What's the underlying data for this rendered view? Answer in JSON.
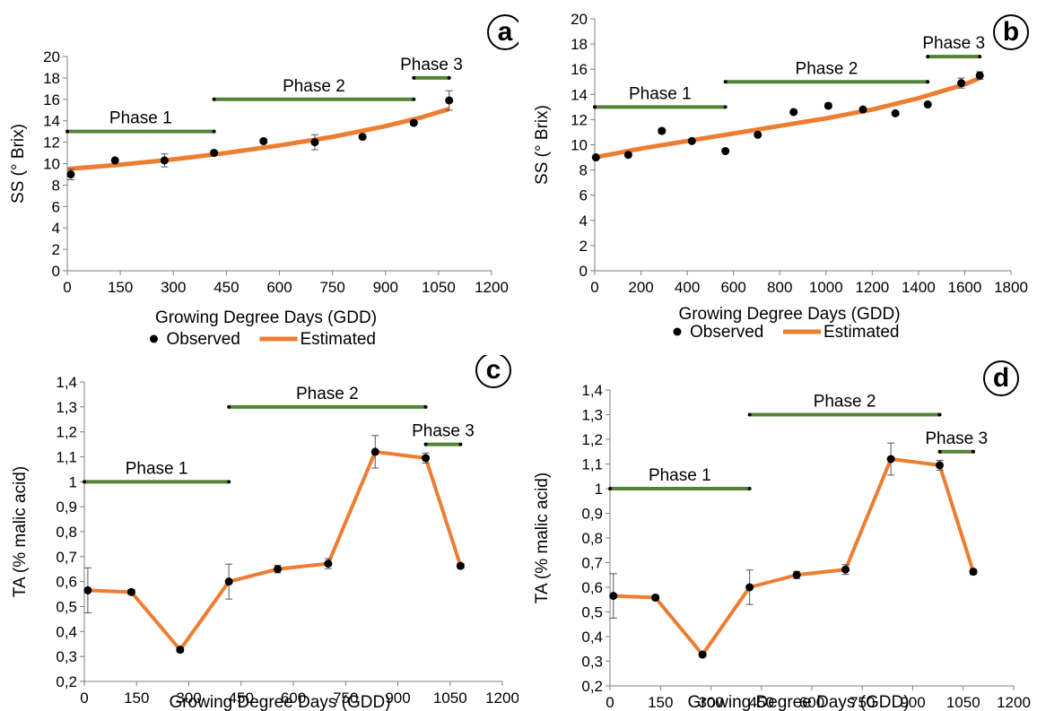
{
  "colors": {
    "estimated": "#ED7D31",
    "phase": "#548235",
    "observed": "#000000",
    "axis": "#7f7f7f"
  },
  "chart_data": [
    {
      "panel": "a",
      "type": "scatter",
      "xlabel": "Growing Degree Days (GDD)",
      "ylabel": "SS (° Brix)",
      "xlim": [
        0,
        1200
      ],
      "ylim": [
        0,
        20
      ],
      "x_ticks": [
        0,
        150,
        300,
        450,
        600,
        750,
        900,
        1050,
        1200
      ],
      "y_ticks": [
        0,
        2,
        4,
        6,
        8,
        10,
        12,
        14,
        16,
        18,
        20
      ],
      "tick_labels_x": [
        "0",
        "150",
        "300",
        "450",
        "600",
        "750",
        "900",
        "1050",
        "1200"
      ],
      "tick_labels_y": [
        "0",
        "2",
        "4",
        "6",
        "8",
        "10",
        "12",
        "14",
        "16",
        "18",
        "20"
      ],
      "observed": {
        "name": "Observed",
        "x": [
          10,
          135,
          275,
          415,
          555,
          700,
          835,
          980,
          1080
        ],
        "y": [
          9.0,
          10.3,
          10.3,
          11.0,
          12.1,
          12.0,
          12.5,
          13.8,
          15.9
        ],
        "err": [
          0.5,
          0.1,
          0.6,
          0.2,
          0.2,
          0.7,
          0.2,
          0.2,
          0.9
        ]
      },
      "estimated": {
        "name": "Estimated",
        "x": [
          0,
          150,
          300,
          450,
          600,
          750,
          900,
          1000,
          1080
        ],
        "y": [
          9.5,
          9.9,
          10.4,
          11.0,
          11.7,
          12.5,
          13.5,
          14.3,
          15.1
        ]
      },
      "phases": [
        {
          "label": "Phase 1",
          "x0": 0,
          "x1": 415,
          "y": 13.0
        },
        {
          "label": "Phase 2",
          "x0": 415,
          "x1": 980,
          "y": 16.0
        },
        {
          "label": "Phase 3",
          "x0": 980,
          "x1": 1080,
          "y": 18.0
        }
      ],
      "legend": [
        "Observed",
        "Estimated"
      ],
      "panel_label": "a"
    },
    {
      "panel": "b",
      "type": "scatter",
      "xlabel": "Growing Degree Days (GDD)",
      "ylabel": "SS (° Brix)",
      "xlim": [
        0,
        1800
      ],
      "ylim": [
        0,
        20
      ],
      "x_ticks": [
        0,
        200,
        400,
        600,
        800,
        1000,
        1200,
        1400,
        1600,
        1800
      ],
      "y_ticks": [
        0,
        2,
        4,
        6,
        8,
        10,
        12,
        14,
        16,
        18,
        20
      ],
      "tick_labels_x": [
        "0",
        "200",
        "400",
        "600",
        "800",
        "1000",
        "1200",
        "1400",
        "1600",
        "1800"
      ],
      "tick_labels_y": [
        "0",
        "2",
        "4",
        "6",
        "8",
        "10",
        "12",
        "14",
        "16",
        "18",
        "20"
      ],
      "observed": {
        "name": "Observed",
        "x": [
          5,
          145,
          290,
          420,
          565,
          705,
          860,
          1010,
          1160,
          1300,
          1440,
          1585,
          1665
        ],
        "y": [
          9.0,
          9.2,
          11.1,
          10.3,
          9.5,
          10.8,
          12.6,
          13.1,
          12.8,
          12.5,
          13.2,
          14.9,
          15.5
        ],
        "err": [
          0.1,
          0.1,
          0.2,
          0.1,
          0.1,
          0.1,
          0.1,
          0.2,
          0.1,
          0.1,
          0.1,
          0.4,
          0.3
        ]
      },
      "estimated": {
        "name": "Estimated",
        "x": [
          0,
          200,
          400,
          600,
          800,
          1000,
          1200,
          1400,
          1600,
          1665
        ],
        "y": [
          9.0,
          9.7,
          10.3,
          10.9,
          11.5,
          12.1,
          12.8,
          13.7,
          14.8,
          15.3
        ]
      },
      "phases": [
        {
          "label": "Phase 1",
          "x0": 0,
          "x1": 565,
          "y": 13.0
        },
        {
          "label": "Phase 2",
          "x0": 565,
          "x1": 1440,
          "y": 15.0
        },
        {
          "label": "Phase 3",
          "x0": 1440,
          "x1": 1665,
          "y": 17.0
        }
      ],
      "legend": [
        "Observed",
        "Estimated"
      ],
      "panel_label": "b"
    },
    {
      "panel": "c",
      "type": "line",
      "xlabel": "Growing Degree Days (GDD)",
      "ylabel": "TA (% malic acid)",
      "xlim": [
        0,
        1200
      ],
      "ylim": [
        0.2,
        1.4
      ],
      "x_ticks": [
        0,
        150,
        300,
        450,
        600,
        750,
        900,
        1050,
        1200
      ],
      "y_ticks": [
        0.2,
        0.3,
        0.4,
        0.5,
        0.6,
        0.7,
        0.8,
        0.9,
        1.0,
        1.1,
        1.2,
        1.3,
        1.4
      ],
      "tick_labels_x": [
        "0",
        "150",
        "300",
        "450",
        "600",
        "750",
        "900",
        "1050",
        "1200"
      ],
      "tick_labels_y": [
        "0,2",
        "0,3",
        "0,4",
        "0,5",
        "0,6",
        "0,7",
        "0,8",
        "0,9",
        "1",
        "1,1",
        "1,2",
        "1,3",
        "1,4"
      ],
      "observed": {
        "name": "Observed",
        "x": [
          10,
          135,
          275,
          415,
          555,
          700,
          835,
          980,
          1080
        ],
        "y": [
          0.565,
          0.558,
          0.327,
          0.6,
          0.65,
          0.672,
          1.12,
          1.095,
          0.663
        ],
        "err": [
          0.09,
          0.01,
          0.01,
          0.07,
          0.015,
          0.02,
          0.065,
          0.02,
          0.01
        ]
      },
      "phases": [
        {
          "label": "Phase 1",
          "x0": 0,
          "x1": 415,
          "y": 1.0
        },
        {
          "label": "Phase 2",
          "x0": 415,
          "x1": 980,
          "y": 1.3
        },
        {
          "label": "Phase 3",
          "x0": 980,
          "x1": 1080,
          "y": 1.15
        }
      ],
      "panel_label": "c"
    },
    {
      "panel": "d",
      "type": "line",
      "xlabel": "Growing Degree Days (GDD)",
      "ylabel": "TA (% malic acid)",
      "xlim": [
        0,
        1200
      ],
      "ylim": [
        0.2,
        1.4
      ],
      "x_ticks": [
        0,
        150,
        300,
        450,
        600,
        750,
        900,
        1050,
        1200
      ],
      "y_ticks": [
        0.2,
        0.3,
        0.4,
        0.5,
        0.6,
        0.7,
        0.8,
        0.9,
        1.0,
        1.1,
        1.2,
        1.3,
        1.4
      ],
      "tick_labels_x": [
        "0",
        "150",
        "300",
        "450",
        "600",
        "750",
        "900",
        "1050",
        "1200"
      ],
      "tick_labels_y": [
        "0,2",
        "0,3",
        "0,4",
        "0,5",
        "0,6",
        "0,7",
        "0,8",
        "0,9",
        "1",
        "1,1",
        "1,2",
        "1,3",
        "1,4"
      ],
      "observed": {
        "name": "Observed",
        "x": [
          10,
          135,
          275,
          415,
          555,
          700,
          835,
          980,
          1080
        ],
        "y": [
          0.565,
          0.558,
          0.327,
          0.6,
          0.65,
          0.672,
          1.12,
          1.095,
          0.663
        ],
        "err": [
          0.09,
          0.01,
          0.01,
          0.07,
          0.015,
          0.02,
          0.065,
          0.02,
          0.01
        ]
      },
      "phases": [
        {
          "label": "Phase 1",
          "x0": 0,
          "x1": 415,
          "y": 1.0
        },
        {
          "label": "Phase 2",
          "x0": 415,
          "x1": 980,
          "y": 1.3
        },
        {
          "label": "Phase 3",
          "x0": 980,
          "x1": 1080,
          "y": 1.15
        }
      ],
      "panel_label": "d"
    }
  ]
}
